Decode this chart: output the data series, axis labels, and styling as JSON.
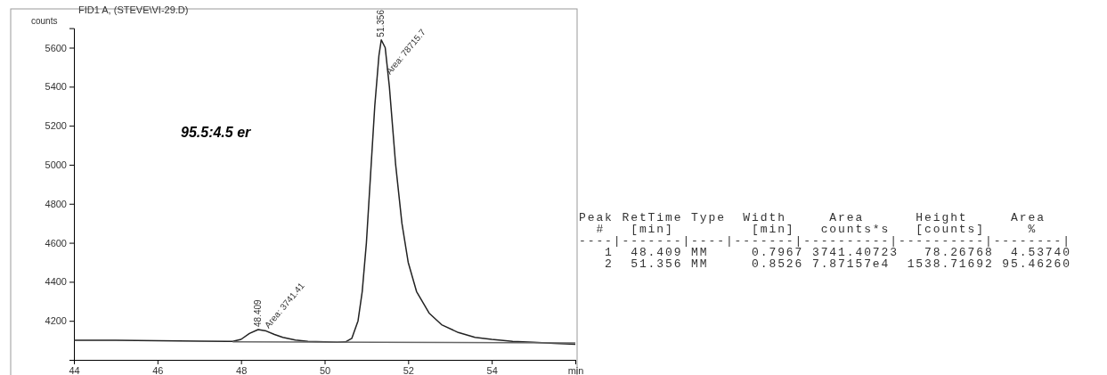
{
  "chart_data": {
    "type": "line",
    "title": "FID1 A, (STEVE\\VI-29.D)",
    "ylabel": "counts",
    "xlim": [
      44,
      56
    ],
    "xticks": [
      44,
      46,
      48,
      50,
      52,
      54,
      {
        "value": 56,
        "label": "min"
      }
    ],
    "ylim": [
      4000,
      5700
    ],
    "yticks": [
      4200,
      4400,
      4600,
      4800,
      5000,
      5200,
      5400,
      5600
    ],
    "grid": false,
    "marker": "none",
    "line_style": "solid",
    "series": [
      {
        "color": "#222222",
        "x": [
          44,
          45,
          46,
          47,
          47.8,
          48.0,
          48.2,
          48.409,
          48.6,
          48.8,
          49.0,
          49.3,
          49.6,
          50,
          50.3,
          50.5,
          50.65,
          50.8,
          50.9,
          51.0,
          51.1,
          51.2,
          51.3,
          51.356,
          51.45,
          51.55,
          51.7,
          51.85,
          52.0,
          52.2,
          52.5,
          52.8,
          53.2,
          53.6,
          54,
          54.5,
          55,
          55.5,
          56
        ],
        "values": [
          4100,
          4100,
          4098,
          4096,
          4095,
          4105,
          4135,
          4155,
          4148,
          4130,
          4115,
          4102,
          4095,
          4093,
          4090,
          4092,
          4110,
          4200,
          4350,
          4600,
          4950,
          5300,
          5560,
          5640,
          5600,
          5400,
          5000,
          4700,
          4500,
          4350,
          4240,
          4180,
          4140,
          4115,
          4105,
          4095,
          4090,
          4085,
          4080
        ]
      },
      {
        "color": "#666666",
        "x": [
          47.8,
          56
        ],
        "values": [
          4093,
          4087
        ]
      }
    ],
    "annotations": [
      {
        "text": "48.409",
        "x": 48.409,
        "y": 4160
      },
      {
        "text": "Area: 3741.41",
        "x": 48.6,
        "y": 4150
      },
      {
        "text": "51.356",
        "x": 51.356,
        "y": 5645
      },
      {
        "text": "Area: 78715.7",
        "x": 51.5,
        "y": 5450
      },
      "95.5:4.5 er",
      "Peak RetTime Type  Width     Area      Height     Area",
      "  #   [min]         [min]   counts*s   [counts]     %",
      "----|-------|----|-------|----------|----------|--------|",
      "   1  48.409 MM     0.7967 3741.40723   78.26768  4.53740",
      "   2  51.356 MM     0.8526 7.87157e4  1538.71692 95.46260"
    ]
  }
}
